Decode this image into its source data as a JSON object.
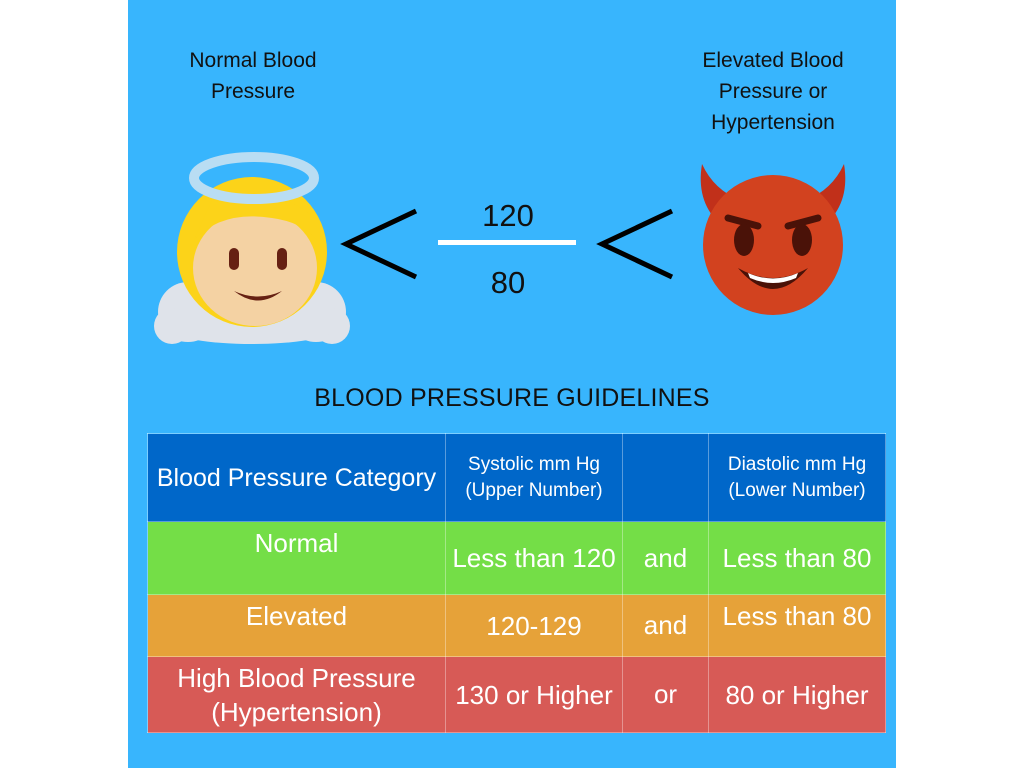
{
  "comparison": {
    "left_label": "Normal Blood Pressure",
    "right_label": "Elevated Blood Pressure or Hypertension",
    "left_icon": "angel-face-icon",
    "right_icon": "smiling-devil-face-icon",
    "less_than_symbol": "<",
    "systolic": "120",
    "diastolic": "80"
  },
  "guidelines": {
    "title": "BLOOD PRESSURE GUIDELINES",
    "headers": {
      "category": "Blood Pressure Category",
      "systolic": "Systolic mm Hg (Upper Number)",
      "diastolic": "Diastolic mm Hg (Lower Number)"
    },
    "rows": [
      {
        "category": "Normal",
        "systolic": "Less than 120",
        "conjunction": "and",
        "diastolic": "Less than 80",
        "color": "#74de47"
      },
      {
        "category": "Elevated",
        "systolic": "120-129",
        "conjunction": "and",
        "diastolic": "Less than 80",
        "color": "#e6a239"
      },
      {
        "category": "High Blood Pressure (Hypertension)",
        "systolic": "130 or Higher",
        "conjunction": "or",
        "diastolic": "80 or Higher",
        "color": "#d75a56"
      }
    ]
  },
  "colors": {
    "panel_background": "#38b5fd",
    "header_background": "#0067c9"
  }
}
